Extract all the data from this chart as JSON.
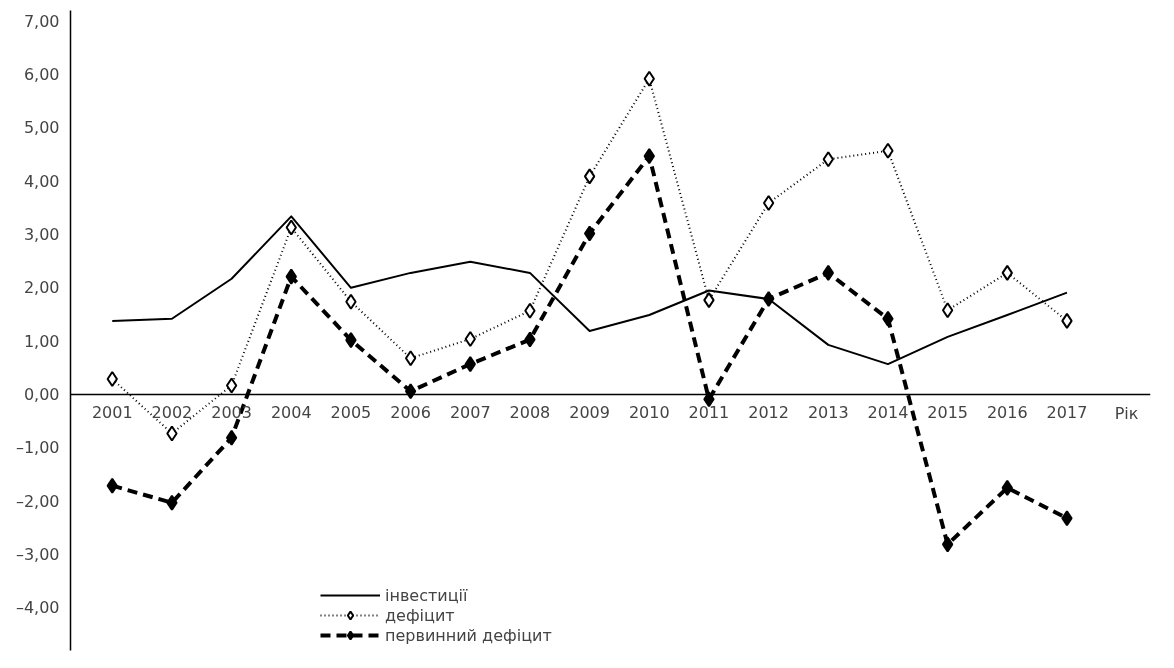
{
  "chart_data": {
    "type": "line",
    "xlabel": "Рік",
    "categories": [
      "2001",
      "2002",
      "2003",
      "2004",
      "2005",
      "2006",
      "2007",
      "2008",
      "2009",
      "2010",
      "2011",
      "2012",
      "2013",
      "2014",
      "2015",
      "2016",
      "2017"
    ],
    "series": [
      {
        "name": "інвестиції",
        "color": "#000000",
        "line_style": "solid",
        "marker": "none",
        "values": [
          1.38,
          1.42,
          2.17,
          3.34,
          2.0,
          2.28,
          2.49,
          2.28,
          1.19,
          1.49,
          1.95,
          1.79,
          0.93,
          0.57,
          1.08,
          1.49,
          1.91
        ]
      },
      {
        "name": "дефіцит",
        "color": "#000000",
        "line_style": "dotted",
        "marker": "diamond",
        "values": [
          0.29,
          -0.73,
          0.17,
          3.13,
          1.74,
          0.68,
          1.04,
          1.57,
          4.09,
          5.92,
          1.77,
          3.59,
          4.41,
          4.57,
          1.58,
          2.28,
          1.38
        ]
      },
      {
        "name": "первинний дефіцит",
        "color": "#000000",
        "line_style": "dashed",
        "marker": "diamond",
        "values": [
          -1.71,
          -2.03,
          -0.81,
          2.21,
          1.02,
          0.06,
          0.57,
          1.03,
          3.02,
          4.47,
          -0.09,
          1.79,
          2.28,
          1.42,
          -2.81,
          -1.75,
          -2.32
        ]
      }
    ],
    "ylim": [
      -4.8,
      7.2
    ],
    "yticks": [
      {
        "value": -4,
        "label": "–4,00"
      },
      {
        "value": -3,
        "label": "–3,00"
      },
      {
        "value": -2,
        "label": "–2,00"
      },
      {
        "value": -1,
        "label": "–1,00"
      },
      {
        "value": 0,
        "label": "0,00"
      },
      {
        "value": 1,
        "label": "1,00"
      },
      {
        "value": 2,
        "label": "2,00"
      },
      {
        "value": 3,
        "label": "3,00"
      },
      {
        "value": 4,
        "label": "4,00"
      },
      {
        "value": 5,
        "label": "5,00"
      },
      {
        "value": 6,
        "label": "6,00"
      },
      {
        "value": 7,
        "label": "7,00"
      }
    ],
    "grid": false,
    "legend": "bottom"
  }
}
